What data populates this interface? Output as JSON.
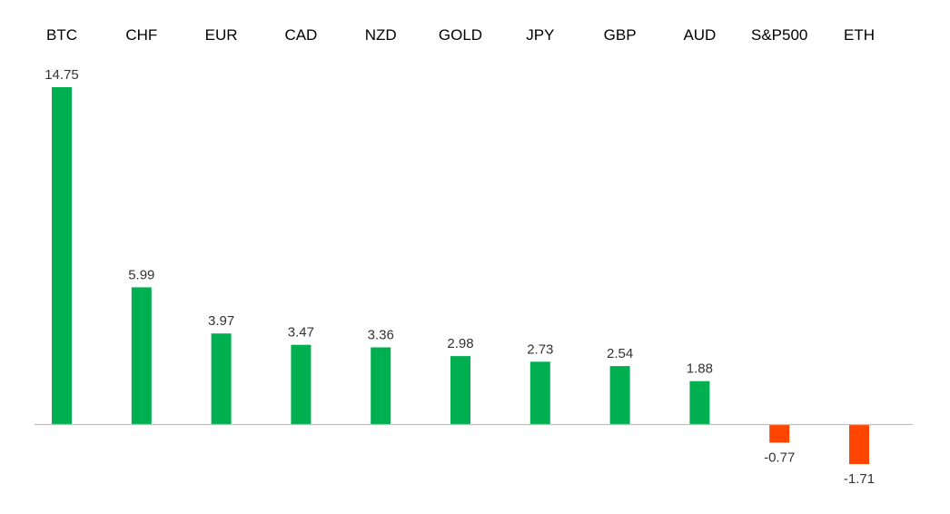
{
  "chart_data": {
    "type": "bar",
    "title": "",
    "xlabel": "",
    "ylabel": "",
    "categories": [
      "BTC",
      "CHF",
      "EUR",
      "CAD",
      "NZD",
      "GOLD",
      "JPY",
      "GBP",
      "AUD",
      "S&P500",
      "ETH"
    ],
    "values": [
      14.75,
      5.99,
      3.97,
      3.47,
      3.36,
      2.98,
      2.73,
      2.54,
      1.88,
      -0.77,
      -1.71
    ],
    "value_labels": [
      "14.75",
      "5.99",
      "3.97",
      "3.47",
      "3.36",
      "2.98",
      "2.73",
      "2.54",
      "1.88",
      "-0.77",
      "-1.71"
    ],
    "ylim": [
      -1.71,
      14.75
    ],
    "grid": false,
    "legend": "none",
    "category_labels_position": "top",
    "colors": {
      "positive": "#00b050",
      "negative": "#ff4500",
      "zero_line": "#bfbfbf"
    }
  }
}
